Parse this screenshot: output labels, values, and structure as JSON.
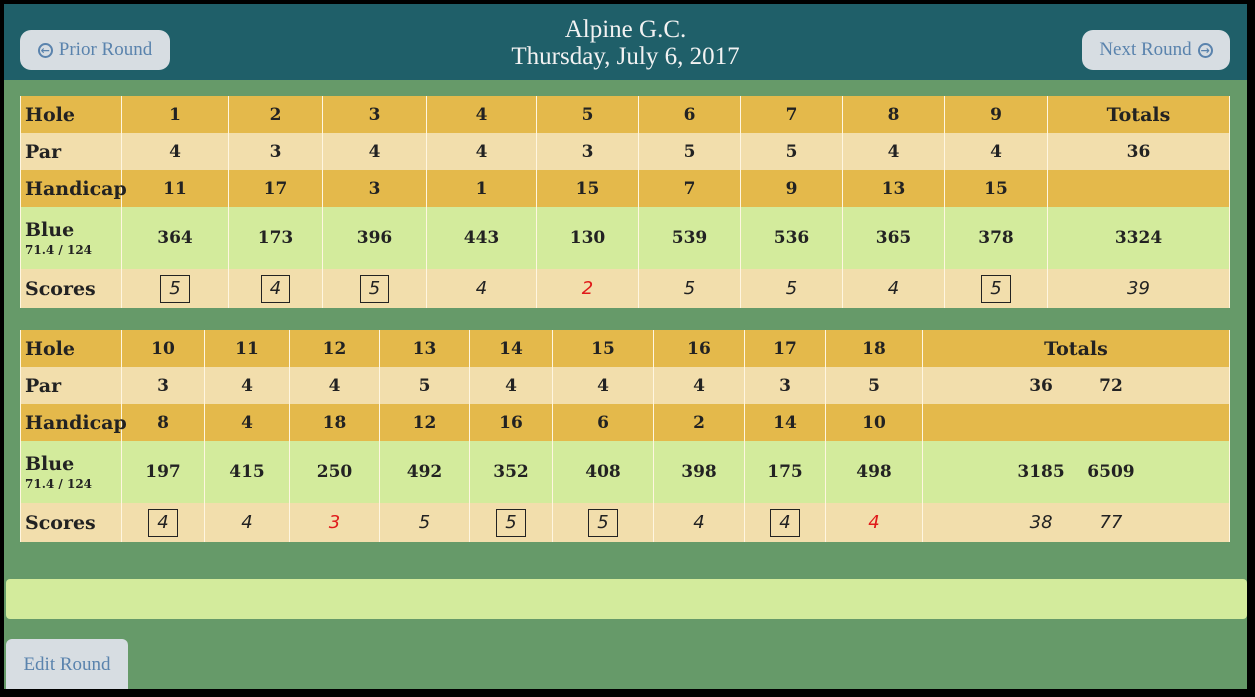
{
  "header": {
    "course": "Alpine G.C.",
    "date": "Thursday, July 6, 2017",
    "prior_label": "Prior Round",
    "next_label": "Next Round"
  },
  "front": {
    "hole_label": "Hole",
    "par_label": "Par",
    "hcp_label": "Handicap",
    "blue_label": "Blue",
    "blue_rating": "71.4 / 124",
    "scores_label": "Scores",
    "totals_label": "Totals",
    "holes": [
      "1",
      "2",
      "3",
      "4",
      "5",
      "6",
      "7",
      "8",
      "9"
    ],
    "par": [
      "4",
      "3",
      "4",
      "4",
      "3",
      "5",
      "5",
      "4",
      "4"
    ],
    "par_total": "36",
    "hcp": [
      "11",
      "17",
      "3",
      "1",
      "15",
      "7",
      "9",
      "13",
      "15"
    ],
    "yards": [
      "364",
      "173",
      "396",
      "443",
      "130",
      "539",
      "536",
      "365",
      "378"
    ],
    "yards_total": "3324",
    "scores": [
      "5",
      "4",
      "5",
      "4",
      "2",
      "5",
      "5",
      "4",
      "5"
    ],
    "score_total": "39"
  },
  "back": {
    "hole_label": "Hole",
    "par_label": "Par",
    "hcp_label": "Handicap",
    "blue_label": "Blue",
    "blue_rating": "71.4 / 124",
    "scores_label": "Scores",
    "totals_label": "Totals",
    "holes": [
      "10",
      "11",
      "12",
      "13",
      "14",
      "15",
      "16",
      "17",
      "18"
    ],
    "par": [
      "3",
      "4",
      "4",
      "5",
      "4",
      "4",
      "4",
      "3",
      "5"
    ],
    "par_total": "36",
    "par_grand": "72",
    "hcp": [
      "8",
      "4",
      "18",
      "12",
      "16",
      "6",
      "2",
      "14",
      "10"
    ],
    "yards": [
      "197",
      "415",
      "250",
      "492",
      "352",
      "408",
      "398",
      "175",
      "498"
    ],
    "yards_total": "3185",
    "yards_grand": "6509",
    "scores": [
      "4",
      "4",
      "3",
      "5",
      "5",
      "5",
      "4",
      "4",
      "4"
    ],
    "score_total": "38",
    "score_grand": "77"
  },
  "footer": {
    "edit_label": "Edit Round"
  },
  "colors": {
    "header_bg": "#1f5f69",
    "page_bg": "#669a69",
    "gold": "#e4b94b",
    "cream": "#f2deac",
    "green": "#d3eb9c",
    "under_par": "#e01a1a"
  }
}
